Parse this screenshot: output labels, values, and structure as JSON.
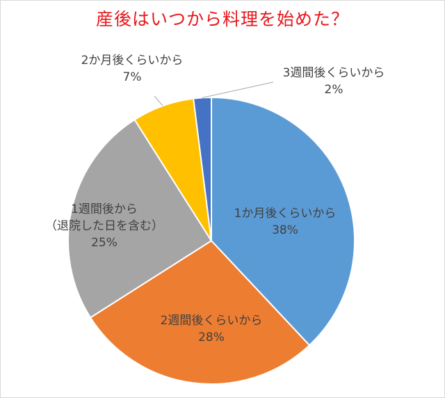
{
  "chart_data": {
    "type": "pie",
    "title": "産後はいつから料理を始めた？",
    "slices": [
      {
        "label": "1か月後くらいから",
        "value": 38,
        "value_label": "38%",
        "color": "#5b9bd5"
      },
      {
        "label": "2週間後くらいから",
        "value": 28,
        "value_label": "28%",
        "color": "#ed7d31"
      },
      {
        "label": "1週間後から\n（退院した日を含む）",
        "value": 25,
        "value_label": "25%",
        "color": "#a5a5a5"
      },
      {
        "label": "2か月後くらいから",
        "value": 7,
        "value_label": "7%",
        "color": "#ffc000"
      },
      {
        "label": "3週間後くらいから",
        "value": 2,
        "value_label": "2%",
        "color": "#4472c4"
      }
    ],
    "start_angle": "12 o'clock",
    "direction": "clockwise",
    "legend": "none"
  }
}
